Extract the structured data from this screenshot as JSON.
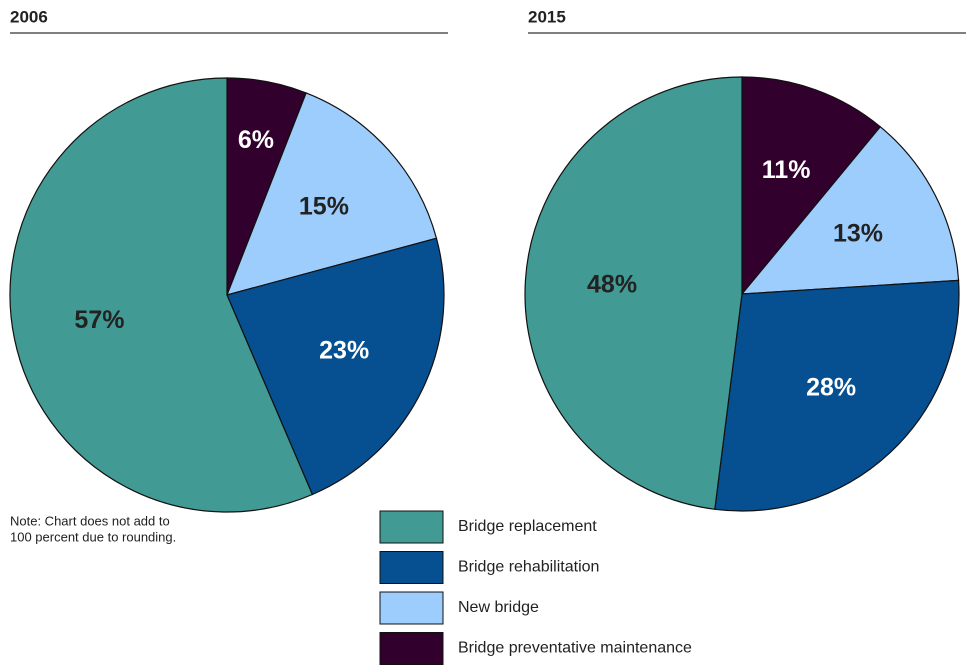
{
  "chart_data": [
    {
      "type": "pie",
      "title": "2006",
      "categories": [
        "Bridge replacement",
        "Bridge rehabilitation",
        "New bridge",
        "Bridge preventative maintenance"
      ],
      "values": [
        57,
        23,
        15,
        6
      ],
      "value_labels": [
        "57%",
        "23%",
        "15%",
        "6%"
      ],
      "colors": [
        "#419a94",
        "#064f90",
        "#9dcdfc",
        "#32002c"
      ]
    },
    {
      "type": "pie",
      "title": "2015",
      "categories": [
        "Bridge replacement",
        "Bridge rehabilitation",
        "New bridge",
        "Bridge preventative maintenance"
      ],
      "values": [
        48,
        28,
        13,
        11
      ],
      "value_labels": [
        "48%",
        "28%",
        "13%",
        "11%"
      ],
      "colors": [
        "#419a94",
        "#064f90",
        "#9dcdfc",
        "#32002c"
      ]
    }
  ],
  "note": [
    "Note: Chart does not add to",
    "100 percent due to rounding."
  ]
}
